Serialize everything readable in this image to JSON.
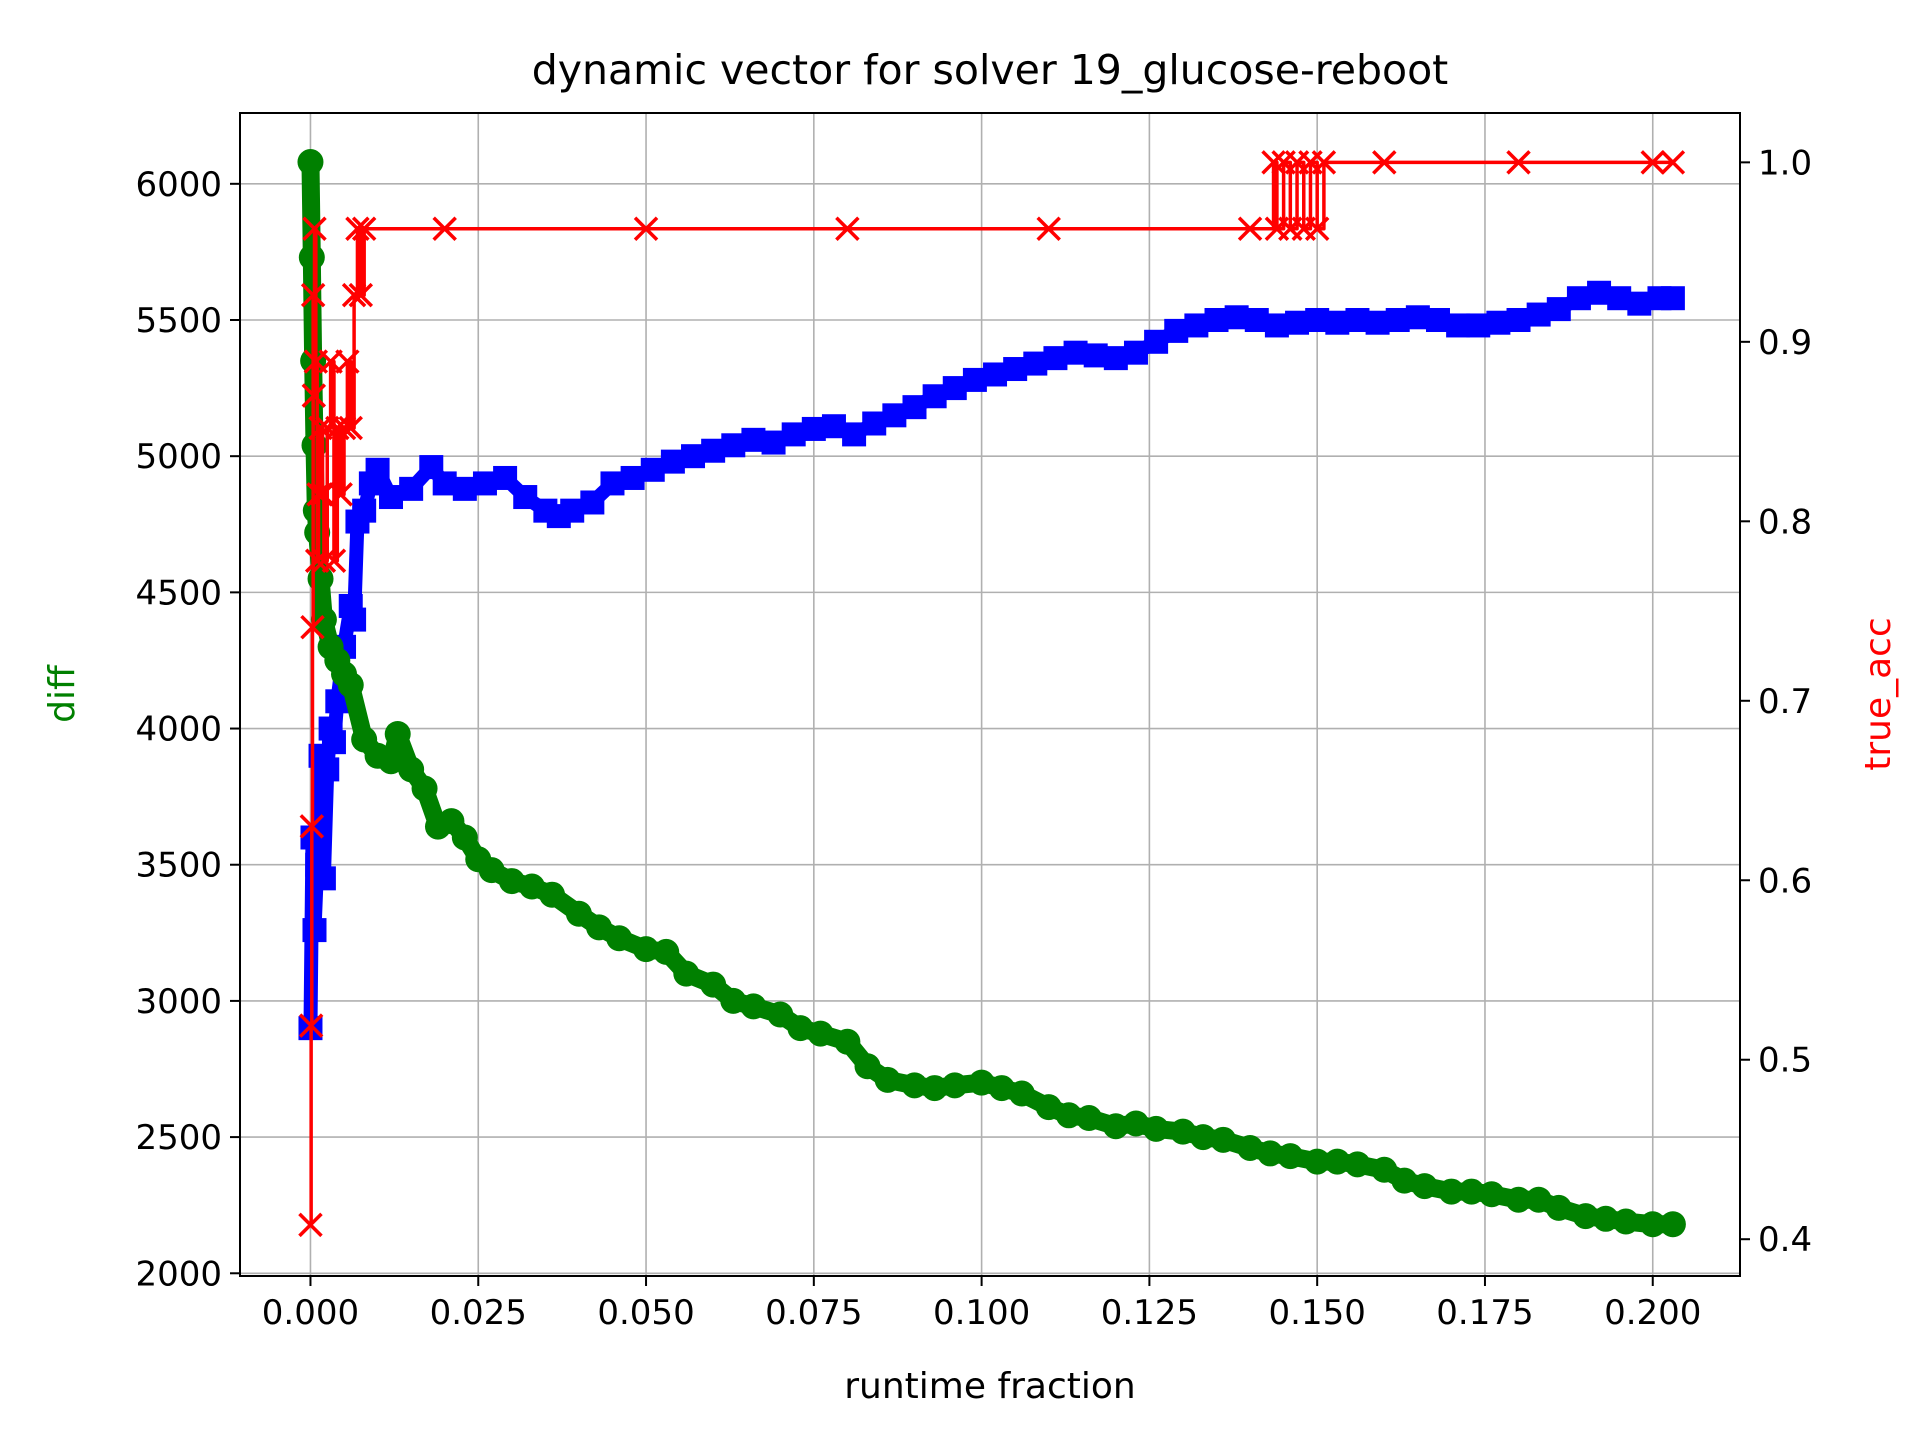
{
  "chart_data": {
    "type": "line",
    "title": "dynamic vector for solver 19_glucose-reboot",
    "xlabel": "runtime fraction",
    "ylabel_left": "diff",
    "ylabel_right": "true_acc",
    "xlim": [
      -0.0105,
      0.213
    ],
    "ylim_left": [
      1990,
      6260
    ],
    "ylim_right": [
      0.3795,
      1.0275
    ],
    "x_ticks": [
      "0.000",
      "0.025",
      "0.050",
      "0.075",
      "0.100",
      "0.125",
      "0.150",
      "0.175",
      "0.200"
    ],
    "y_left_ticks": [
      "2000",
      "2500",
      "3000",
      "3500",
      "4000",
      "4500",
      "5000",
      "5500",
      "6000"
    ],
    "y_right_ticks": [
      "0.4",
      "0.5",
      "0.6",
      "0.7",
      "0.8",
      "0.9",
      "1.0"
    ],
    "grid": true,
    "colors": {
      "diff": "#008000",
      "blue_series": "#0000ff",
      "true_acc": "#ff0000",
      "ylabel_left": "#008000",
      "ylabel_right": "#ff0000"
    },
    "series": [
      {
        "key": "diff",
        "axis": "left",
        "marker": "circle",
        "color": "#008000",
        "x": [
          0.0,
          0.0002,
          0.0004,
          0.0006,
          0.0008,
          0.001,
          0.0015,
          0.002,
          0.003,
          0.004,
          0.005,
          0.006,
          0.008,
          0.01,
          0.012,
          0.013,
          0.015,
          0.017,
          0.019,
          0.021,
          0.023,
          0.025,
          0.027,
          0.03,
          0.033,
          0.036,
          0.04,
          0.043,
          0.046,
          0.05,
          0.053,
          0.056,
          0.06,
          0.063,
          0.066,
          0.07,
          0.073,
          0.076,
          0.08,
          0.083,
          0.086,
          0.09,
          0.093,
          0.096,
          0.1,
          0.103,
          0.106,
          0.11,
          0.113,
          0.116,
          0.12,
          0.123,
          0.126,
          0.13,
          0.133,
          0.136,
          0.14,
          0.143,
          0.146,
          0.15,
          0.153,
          0.156,
          0.16,
          0.163,
          0.166,
          0.17,
          0.173,
          0.176,
          0.18,
          0.183,
          0.186,
          0.19,
          0.193,
          0.196,
          0.2,
          0.203
        ],
        "y": [
          6080,
          5730,
          5350,
          5040,
          4800,
          4720,
          4550,
          4400,
          4300,
          4250,
          4200,
          4160,
          3960,
          3900,
          3880,
          3980,
          3850,
          3780,
          3640,
          3660,
          3600,
          3520,
          3480,
          3440,
          3420,
          3390,
          3320,
          3270,
          3230,
          3190,
          3180,
          3100,
          3060,
          3000,
          2980,
          2950,
          2900,
          2880,
          2850,
          2760,
          2710,
          2690,
          2680,
          2690,
          2700,
          2680,
          2660,
          2610,
          2580,
          2570,
          2540,
          2550,
          2530,
          2520,
          2500,
          2490,
          2460,
          2440,
          2430,
          2410,
          2410,
          2400,
          2380,
          2340,
          2320,
          2300,
          2300,
          2290,
          2270,
          2270,
          2240,
          2210,
          2200,
          2190,
          2180,
          2180
        ]
      },
      {
        "key": "blue",
        "axis": "left",
        "marker": "square",
        "color": "#0000ff",
        "x": [
          0.0,
          0.0003,
          0.0006,
          0.001,
          0.0015,
          0.002,
          0.0025,
          0.003,
          0.0035,
          0.004,
          0.005,
          0.006,
          0.0065,
          0.007,
          0.008,
          0.009,
          0.01,
          0.012,
          0.015,
          0.018,
          0.02,
          0.023,
          0.026,
          0.029,
          0.032,
          0.035,
          0.037,
          0.039,
          0.042,
          0.045,
          0.048,
          0.051,
          0.054,
          0.057,
          0.06,
          0.063,
          0.066,
          0.069,
          0.072,
          0.075,
          0.078,
          0.081,
          0.084,
          0.087,
          0.09,
          0.093,
          0.096,
          0.099,
          0.102,
          0.105,
          0.108,
          0.111,
          0.114,
          0.117,
          0.12,
          0.123,
          0.126,
          0.129,
          0.132,
          0.135,
          0.138,
          0.141,
          0.144,
          0.147,
          0.15,
          0.153,
          0.156,
          0.159,
          0.162,
          0.165,
          0.168,
          0.171,
          0.174,
          0.177,
          0.18,
          0.183,
          0.186,
          0.189,
          0.192,
          0.195,
          0.198,
          0.201,
          0.203
        ],
        "y": [
          2900,
          3600,
          3260,
          3500,
          3900,
          3450,
          3850,
          4000,
          3950,
          4100,
          4300,
          4450,
          4400,
          4760,
          4800,
          4900,
          4950,
          4850,
          4880,
          4960,
          4900,
          4880,
          4900,
          4920,
          4850,
          4800,
          4780,
          4800,
          4830,
          4900,
          4920,
          4950,
          4980,
          5000,
          5020,
          5040,
          5060,
          5050,
          5080,
          5100,
          5110,
          5080,
          5120,
          5150,
          5180,
          5220,
          5250,
          5280,
          5300,
          5320,
          5340,
          5360,
          5380,
          5370,
          5360,
          5380,
          5420,
          5460,
          5480,
          5500,
          5510,
          5500,
          5480,
          5490,
          5500,
          5490,
          5500,
          5490,
          5500,
          5510,
          5500,
          5480,
          5480,
          5490,
          5500,
          5520,
          5540,
          5580,
          5600,
          5580,
          5560,
          5580,
          5580
        ]
      },
      {
        "key": "true_acc",
        "axis": "right",
        "marker": "x",
        "color": "#ff0000",
        "x": [
          0.0,
          0.0001,
          0.0002,
          0.0003,
          0.0004,
          0.0005,
          0.0006,
          0.0008,
          0.001,
          0.0012,
          0.0015,
          0.0018,
          0.002,
          0.0025,
          0.003,
          0.0035,
          0.004,
          0.0045,
          0.005,
          0.0055,
          0.006,
          0.0065,
          0.007,
          0.0075,
          0.008,
          0.02,
          0.05,
          0.08,
          0.11,
          0.14,
          0.1435,
          0.144,
          0.145,
          0.146,
          0.147,
          0.148,
          0.149,
          0.15,
          0.151,
          0.16,
          0.18,
          0.2,
          0.203
        ],
        "y": [
          0.408,
          0.519,
          0.63,
          0.741,
          0.926,
          0.87,
          0.963,
          0.889,
          0.778,
          0.815,
          0.852,
          0.815,
          0.778,
          0.852,
          0.889,
          0.778,
          0.852,
          0.815,
          0.852,
          0.889,
          0.852,
          0.926,
          0.963,
          0.926,
          0.963,
          0.963,
          0.963,
          0.963,
          0.963,
          0.963,
          1.0,
          0.963,
          1.0,
          0.963,
          1.0,
          0.963,
          1.0,
          0.963,
          1.0,
          1.0,
          1.0,
          1.0,
          1.0
        ]
      }
    ]
  }
}
